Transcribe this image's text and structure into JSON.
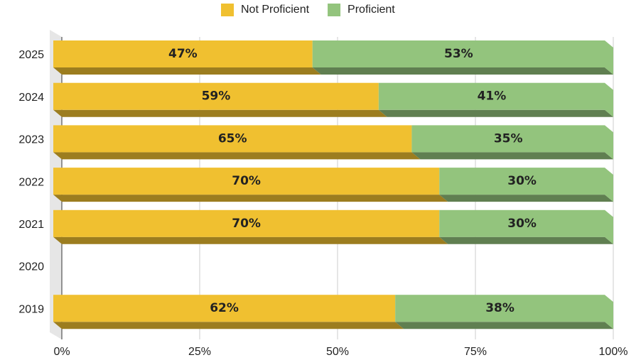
{
  "chart_data": {
    "type": "bar3d_stacked_horizontal",
    "categories": [
      "2025",
      "2024",
      "2023",
      "2022",
      "2021",
      "2020",
      "2019"
    ],
    "series": [
      {
        "name": "Not Proficient",
        "color": "#f0c030",
        "values": [
          47,
          59,
          65,
          70,
          70,
          null,
          62
        ],
        "value_labels": [
          "47%",
          "59%",
          "65%",
          "70%",
          "70%",
          null,
          "62%"
        ]
      },
      {
        "name": "Proficient",
        "color": "#93c47d",
        "values": [
          53,
          41,
          35,
          30,
          30,
          null,
          38
        ],
        "value_labels": [
          "53%",
          "41%",
          "35%",
          "30%",
          "30%",
          null,
          "38%"
        ]
      }
    ],
    "xlim": [
      0,
      100
    ],
    "xticks": [
      {
        "value": 0,
        "label": "0%"
      },
      {
        "value": 25,
        "label": "25%"
      },
      {
        "value": 50,
        "label": "50%"
      },
      {
        "value": 75,
        "label": "75%"
      },
      {
        "value": 100,
        "label": "100%"
      }
    ],
    "grid": true,
    "legend": "top"
  }
}
